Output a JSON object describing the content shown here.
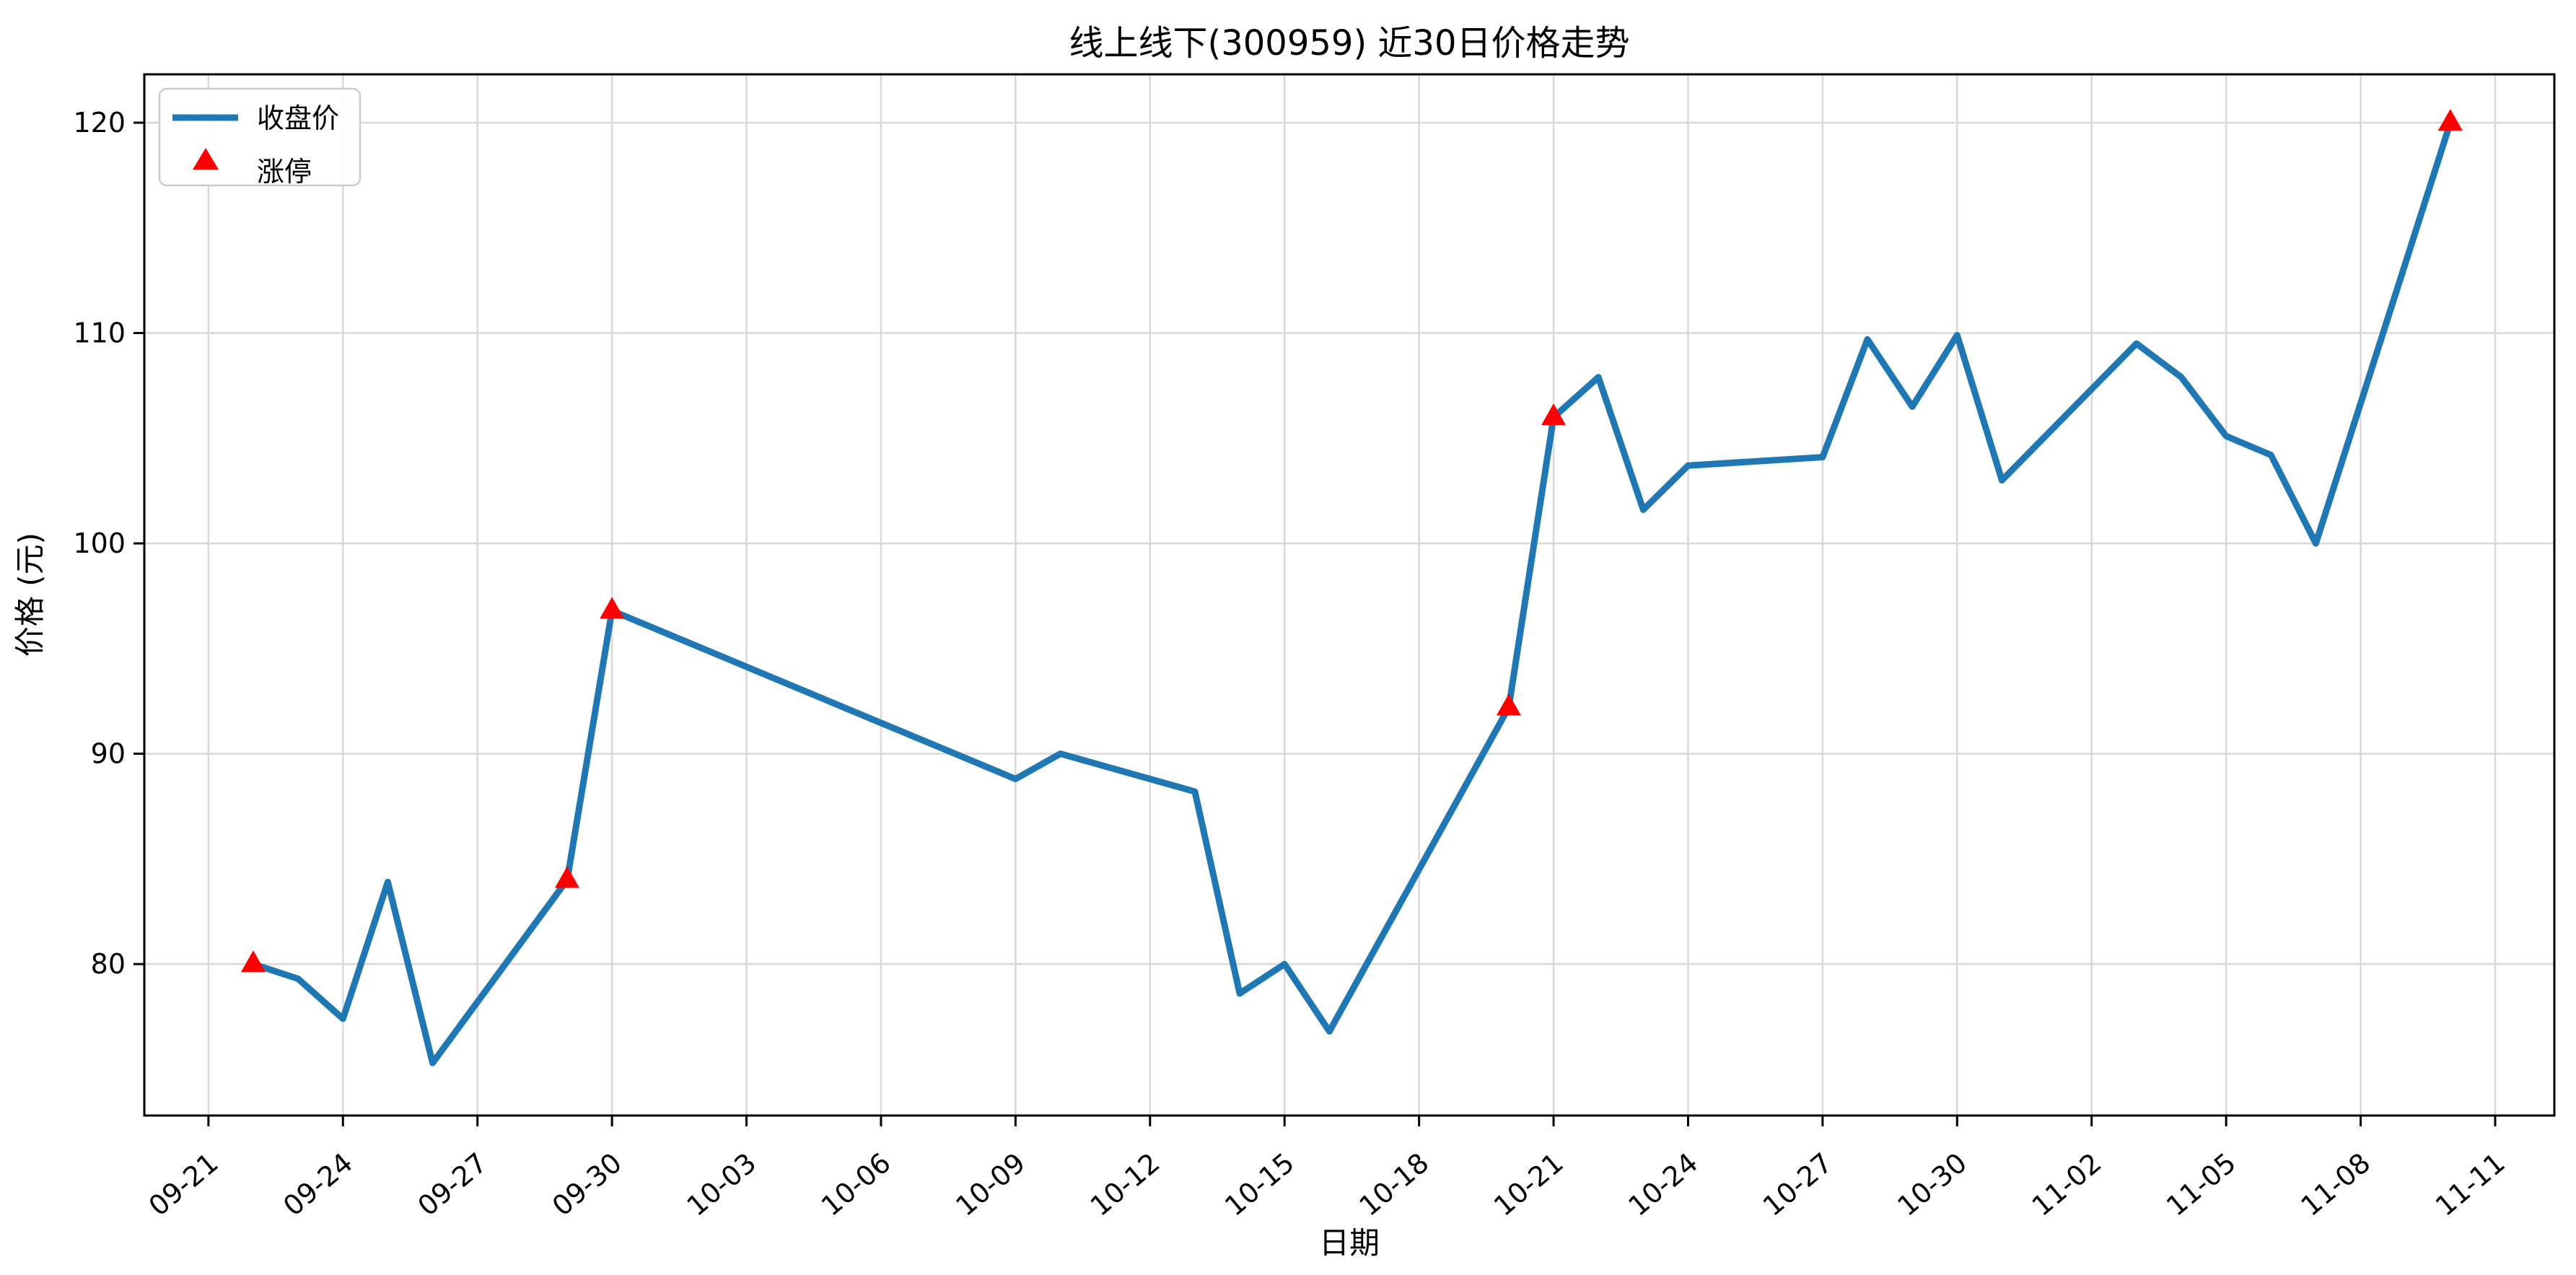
{
  "page": {
    "background": "#ffffff"
  },
  "chart_data": {
    "type": "line",
    "title": "线上线下(300959) 近30日价格走势",
    "xlabel": "日期",
    "ylabel": "价格 (元)",
    "grid": true,
    "grid_color": "#d8d8d8",
    "line_color": "#1f77b4",
    "marker_color": "#ff0000",
    "axis_color": "#000000",
    "legend": {
      "position": "upper left",
      "items": [
        {
          "label": "收盘价",
          "marker": "line",
          "color": "#1f77b4"
        },
        {
          "label": "涨停",
          "marker": "triangle-up",
          "color": "#ff0000"
        }
      ]
    },
    "x_tick_labels": [
      "09-21",
      "09-24",
      "09-27",
      "09-30",
      "10-03",
      "10-06",
      "10-09",
      "10-12",
      "10-15",
      "10-18",
      "10-21",
      "10-24",
      "10-27",
      "10-30",
      "11-02",
      "11-05",
      "11-08",
      "11-11"
    ],
    "y_ticks": [
      80,
      90,
      100,
      110,
      120
    ],
    "xlim_days_from_first_tick": [
      -1.43,
      52.32
    ],
    "ylim": [
      72.8,
      122.3
    ],
    "series_name": "收盘价",
    "points": [
      {
        "date": "09-22",
        "close": 80.0,
        "limit_up": true
      },
      {
        "date": "09-23",
        "close": 79.3,
        "limit_up": false
      },
      {
        "date": "09-24",
        "close": 77.4,
        "limit_up": false
      },
      {
        "date": "09-25",
        "close": 83.9,
        "limit_up": false
      },
      {
        "date": "09-26",
        "close": 75.3,
        "limit_up": false
      },
      {
        "date": "09-29",
        "close": 84.0,
        "limit_up": true
      },
      {
        "date": "09-30",
        "close": 96.8,
        "limit_up": true
      },
      {
        "date": "10-09",
        "close": 88.8,
        "limit_up": false
      },
      {
        "date": "10-10",
        "close": 90.0,
        "limit_up": false
      },
      {
        "date": "10-13",
        "close": 88.2,
        "limit_up": false
      },
      {
        "date": "10-14",
        "close": 78.6,
        "limit_up": false
      },
      {
        "date": "10-15",
        "close": 80.0,
        "limit_up": false
      },
      {
        "date": "10-16",
        "close": 76.8,
        "limit_up": false
      },
      {
        "date": "10-20",
        "close": 92.2,
        "limit_up": true
      },
      {
        "date": "10-21",
        "close": 106.0,
        "limit_up": true
      },
      {
        "date": "10-22",
        "close": 107.9,
        "limit_up": false
      },
      {
        "date": "10-23",
        "close": 101.6,
        "limit_up": false
      },
      {
        "date": "10-24",
        "close": 103.7,
        "limit_up": false
      },
      {
        "date": "10-27",
        "close": 104.1,
        "limit_up": false
      },
      {
        "date": "10-28",
        "close": 109.7,
        "limit_up": false
      },
      {
        "date": "10-29",
        "close": 106.5,
        "limit_up": false
      },
      {
        "date": "10-30",
        "close": 109.9,
        "limit_up": false
      },
      {
        "date": "10-31",
        "close": 103.0,
        "limit_up": false
      },
      {
        "date": "11-03",
        "close": 109.5,
        "limit_up": false
      },
      {
        "date": "11-04",
        "close": 107.9,
        "limit_up": false
      },
      {
        "date": "11-05",
        "close": 105.1,
        "limit_up": false
      },
      {
        "date": "11-06",
        "close": 104.2,
        "limit_up": false
      },
      {
        "date": "11-07",
        "close": 100.0,
        "limit_up": false
      },
      {
        "date": "11-10",
        "close": 120.0,
        "limit_up": true
      }
    ]
  }
}
